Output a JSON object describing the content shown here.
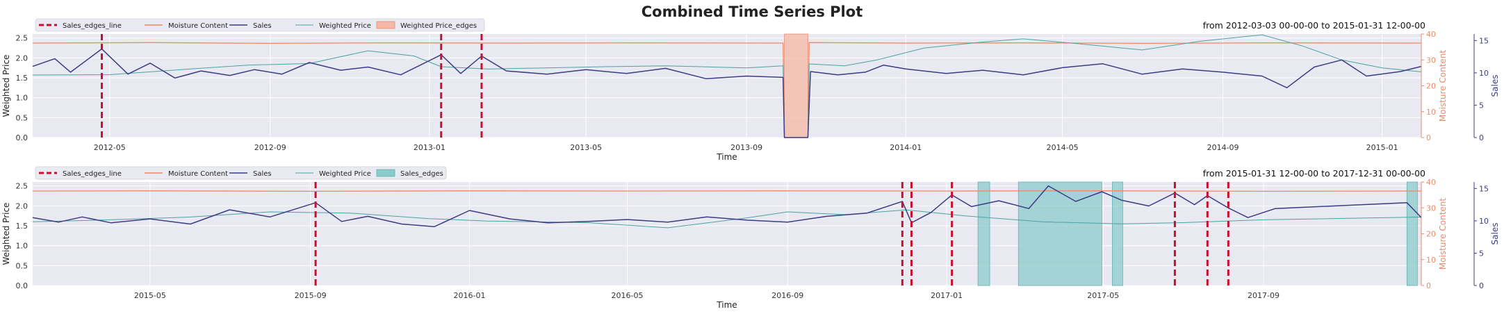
{
  "figure_title": "Combined Time Series Plot",
  "colors": {
    "moisture": "#ee8a66",
    "sales": "#3c3c85",
    "weighted_price": "#4aa3a5",
    "edges_line": "#c8102e",
    "price_edges_fill": "#f4b8a4",
    "sales_edges_fill": "#8ccbcc",
    "panel_bg": "#e9e9f1"
  },
  "chart_data": [
    {
      "type": "line",
      "range_label": "from 2012-03-03 00-00-00 to 2015-01-31 12-00-00",
      "xlabel": "Time",
      "ylabel_left": "Weighted Price",
      "ylabel_right_1": "Moisture Content",
      "ylabel_right_2": "Sales",
      "xlim": [
        "2012-03-03",
        "2015-01-31"
      ],
      "ylim_left": [
        0,
        2.6
      ],
      "ylim_moisture": [
        0,
        40
      ],
      "ylim_sales": [
        0,
        16
      ],
      "yticks_left": [
        "0.0",
        "0.5",
        "1.0",
        "1.5",
        "2.0",
        "2.5"
      ],
      "yticks_moisture": [
        "0",
        "10",
        "20",
        "30",
        "40"
      ],
      "yticks_sales": [
        "0",
        "5",
        "10",
        "15"
      ],
      "xticks": [
        "2012-05",
        "2012-09",
        "2013-01",
        "2013-05",
        "2013-09",
        "2014-01",
        "2014-05",
        "2014-09",
        "2015-01"
      ],
      "legend": [
        {
          "label": "Sales_edges_line",
          "kind": "dashed"
        },
        {
          "label": "Moisture Content",
          "kind": "moisture"
        },
        {
          "label": "Sales",
          "kind": "sales"
        },
        {
          "label": "Weighted Price",
          "kind": "price"
        },
        {
          "label": "Weighted Price_edges",
          "kind": "price_patch"
        }
      ],
      "edge_lines": [
        "2012-04-25",
        "2013-01-10",
        "2013-02-10"
      ],
      "spans": [
        [
          "2013-09-30",
          "2013-10-18"
        ]
      ],
      "span_kind": "price",
      "moisture": [
        [
          "2012-03-03",
          36.5
        ],
        [
          "2012-06-01",
          36.7
        ],
        [
          "2012-09-01",
          36.4
        ],
        [
          "2012-12-01",
          36.6
        ],
        [
          "2013-03-01",
          36.5
        ],
        [
          "2013-06-01",
          36.6
        ],
        [
          "2013-09-29",
          36.5
        ],
        [
          "2013-09-30",
          0
        ],
        [
          "2013-10-18",
          0
        ],
        [
          "2013-10-19",
          36.7
        ],
        [
          "2014-01-01",
          36.5
        ],
        [
          "2014-04-01",
          36.6
        ],
        [
          "2014-07-01",
          36.4
        ],
        [
          "2014-10-01",
          36.6
        ],
        [
          "2015-01-31",
          36.5
        ]
      ],
      "weighted_price": [
        [
          "2012-03-03",
          1.57
        ],
        [
          "2012-05-01",
          1.58
        ],
        [
          "2012-07-01",
          1.72
        ],
        [
          "2012-08-15",
          1.82
        ],
        [
          "2012-10-01",
          1.86
        ],
        [
          "2012-11-15",
          2.18
        ],
        [
          "2012-12-20",
          2.05
        ],
        [
          "2013-01-10",
          1.78
        ],
        [
          "2013-02-15",
          1.72
        ],
        [
          "2013-04-01",
          1.75
        ],
        [
          "2013-05-15",
          1.78
        ],
        [
          "2013-07-01",
          1.8
        ],
        [
          "2013-09-01",
          1.75
        ],
        [
          "2013-09-29",
          1.8
        ],
        [
          "2013-09-30",
          0
        ],
        [
          "2013-10-18",
          0
        ],
        [
          "2013-10-19",
          1.85
        ],
        [
          "2013-11-15",
          1.8
        ],
        [
          "2013-12-10",
          1.95
        ],
        [
          "2014-01-15",
          2.25
        ],
        [
          "2014-03-01",
          2.4
        ],
        [
          "2014-04-01",
          2.48
        ],
        [
          "2014-05-15",
          2.35
        ],
        [
          "2014-07-01",
          2.2
        ],
        [
          "2014-08-15",
          2.42
        ],
        [
          "2014-10-01",
          2.58
        ],
        [
          "2014-11-01",
          2.3
        ],
        [
          "2014-12-01",
          1.95
        ],
        [
          "2015-01-01",
          1.75
        ],
        [
          "2015-01-31",
          1.65
        ]
      ],
      "sales": [
        [
          "2012-03-03",
          11.0
        ],
        [
          "2012-03-20",
          12.2
        ],
        [
          "2012-04-01",
          10.1
        ],
        [
          "2012-04-25",
          13.7
        ],
        [
          "2012-05-15",
          9.8
        ],
        [
          "2012-06-01",
          11.5
        ],
        [
          "2012-06-20",
          9.2
        ],
        [
          "2012-07-10",
          10.3
        ],
        [
          "2012-08-01",
          9.6
        ],
        [
          "2012-08-20",
          10.5
        ],
        [
          "2012-09-10",
          9.8
        ],
        [
          "2012-10-01",
          11.6
        ],
        [
          "2012-10-25",
          10.4
        ],
        [
          "2012-11-15",
          10.9
        ],
        [
          "2012-12-10",
          9.7
        ],
        [
          "2013-01-10",
          12.8
        ],
        [
          "2013-01-25",
          9.9
        ],
        [
          "2013-02-10",
          12.6
        ],
        [
          "2013-03-01",
          10.3
        ],
        [
          "2013-04-01",
          9.8
        ],
        [
          "2013-05-01",
          10.5
        ],
        [
          "2013-06-01",
          9.9
        ],
        [
          "2013-07-01",
          10.7
        ],
        [
          "2013-08-01",
          9.1
        ],
        [
          "2013-09-01",
          9.5
        ],
        [
          "2013-09-29",
          9.3
        ],
        [
          "2013-09-30",
          0
        ],
        [
          "2013-10-18",
          0
        ],
        [
          "2013-10-20",
          10.2
        ],
        [
          "2013-11-10",
          9.7
        ],
        [
          "2013-12-01",
          10.1
        ],
        [
          "2013-12-15",
          11.2
        ],
        [
          "2014-01-01",
          10.6
        ],
        [
          "2014-02-01",
          9.9
        ],
        [
          "2014-03-01",
          10.4
        ],
        [
          "2014-04-01",
          9.7
        ],
        [
          "2014-05-01",
          10.8
        ],
        [
          "2014-06-01",
          11.4
        ],
        [
          "2014-07-01",
          9.8
        ],
        [
          "2014-08-01",
          10.6
        ],
        [
          "2014-09-01",
          10.1
        ],
        [
          "2014-10-01",
          9.5
        ],
        [
          "2014-10-20",
          7.7
        ],
        [
          "2014-11-10",
          10.9
        ],
        [
          "2014-12-01",
          12.0
        ],
        [
          "2014-12-20",
          9.5
        ],
        [
          "2015-01-15",
          10.2
        ],
        [
          "2015-01-31",
          11.0
        ]
      ]
    },
    {
      "type": "line",
      "range_label": "from 2015-01-31 12-00-00 to 2017-12-31 00-00-00",
      "xlabel": "Time",
      "ylabel_left": "Weighted Price",
      "ylabel_right_1": "Moisture Content",
      "ylabel_right_2": "Sales",
      "xlim": [
        "2015-01-31",
        "2017-12-31"
      ],
      "ylim_left": [
        0,
        2.6
      ],
      "ylim_moisture": [
        0,
        40
      ],
      "ylim_sales": [
        0,
        16
      ],
      "yticks_left": [
        "0.0",
        "0.5",
        "1.0",
        "1.5",
        "2.0",
        "2.5"
      ],
      "yticks_moisture": [
        "0",
        "10",
        "20",
        "30",
        "40"
      ],
      "yticks_sales": [
        "0",
        "5",
        "10",
        "15"
      ],
      "xticks": [
        "2015-05",
        "2015-09",
        "2016-01",
        "2016-05",
        "2016-09",
        "2017-01",
        "2017-05",
        "2017-09"
      ],
      "legend": [
        {
          "label": "Sales_edges_line",
          "kind": "dashed"
        },
        {
          "label": "Moisture Content",
          "kind": "moisture"
        },
        {
          "label": "Sales",
          "kind": "sales"
        },
        {
          "label": "Weighted Price",
          "kind": "price"
        },
        {
          "label": "Sales_edges",
          "kind": "sales_patch"
        }
      ],
      "edge_lines": [
        "2015-09-05",
        "2016-11-28",
        "2016-12-05",
        "2017-01-05",
        "2017-06-25",
        "2017-07-20",
        "2017-08-05"
      ],
      "spans": [
        [
          "2017-01-25",
          "2017-02-03"
        ],
        [
          "2017-02-25",
          "2017-04-30"
        ],
        [
          "2017-05-08",
          "2017-05-16"
        ],
        [
          "2017-12-20",
          "2017-12-28"
        ]
      ],
      "span_kind": "sales",
      "moisture": [
        [
          "2015-01-31",
          36.5
        ],
        [
          "2015-05-01",
          36.6
        ],
        [
          "2015-09-01",
          36.4
        ],
        [
          "2016-01-01",
          36.6
        ],
        [
          "2016-05-01",
          36.5
        ],
        [
          "2016-09-01",
          36.6
        ],
        [
          "2017-01-01",
          36.5
        ],
        [
          "2017-05-01",
          36.6
        ],
        [
          "2017-09-01",
          36.4
        ],
        [
          "2017-12-31",
          36.5
        ]
      ],
      "weighted_price": [
        [
          "2015-01-31",
          1.6
        ],
        [
          "2015-04-01",
          1.65
        ],
        [
          "2015-06-01",
          1.72
        ],
        [
          "2015-08-01",
          1.85
        ],
        [
          "2015-10-01",
          1.82
        ],
        [
          "2015-12-01",
          1.68
        ],
        [
          "2016-01-15",
          1.62
        ],
        [
          "2016-04-01",
          1.58
        ],
        [
          "2016-06-01",
          1.45
        ],
        [
          "2016-08-01",
          1.7
        ],
        [
          "2016-09-01",
          1.85
        ],
        [
          "2016-10-15",
          1.78
        ],
        [
          "2016-12-01",
          1.9
        ],
        [
          "2017-01-15",
          1.75
        ],
        [
          "2017-03-15",
          1.6
        ],
        [
          "2017-05-15",
          1.55
        ],
        [
          "2017-07-01",
          1.58
        ],
        [
          "2017-09-01",
          1.65
        ],
        [
          "2017-12-31",
          1.72
        ]
      ],
      "sales": [
        [
          "2015-01-31",
          10.5
        ],
        [
          "2015-02-20",
          9.8
        ],
        [
          "2015-03-10",
          10.6
        ],
        [
          "2015-04-01",
          9.7
        ],
        [
          "2015-05-01",
          10.3
        ],
        [
          "2015-06-01",
          9.5
        ],
        [
          "2015-07-01",
          11.7
        ],
        [
          "2015-08-01",
          10.6
        ],
        [
          "2015-09-05",
          12.8
        ],
        [
          "2015-09-25",
          9.9
        ],
        [
          "2015-10-15",
          10.7
        ],
        [
          "2015-11-10",
          9.5
        ],
        [
          "2015-12-05",
          9.1
        ],
        [
          "2016-01-01",
          11.6
        ],
        [
          "2016-02-01",
          10.3
        ],
        [
          "2016-03-01",
          9.7
        ],
        [
          "2016-04-01",
          9.9
        ],
        [
          "2016-05-01",
          10.2
        ],
        [
          "2016-06-01",
          9.8
        ],
        [
          "2016-07-01",
          10.6
        ],
        [
          "2016-08-01",
          10.1
        ],
        [
          "2016-09-01",
          9.8
        ],
        [
          "2016-10-01",
          10.7
        ],
        [
          "2016-11-01",
          11.2
        ],
        [
          "2016-11-28",
          13.0
        ],
        [
          "2016-12-05",
          9.7
        ],
        [
          "2016-12-20",
          11.3
        ],
        [
          "2017-01-05",
          14.0
        ],
        [
          "2017-01-20",
          12.2
        ],
        [
          "2017-02-10",
          13.1
        ],
        [
          "2017-03-05",
          11.9
        ],
        [
          "2017-03-20",
          15.4
        ],
        [
          "2017-04-10",
          13.0
        ],
        [
          "2017-04-30",
          14.5
        ],
        [
          "2017-05-15",
          13.2
        ],
        [
          "2017-06-05",
          12.3
        ],
        [
          "2017-06-25",
          14.3
        ],
        [
          "2017-07-10",
          12.5
        ],
        [
          "2017-07-20",
          13.9
        ],
        [
          "2017-08-05",
          12.0
        ],
        [
          "2017-08-20",
          10.5
        ],
        [
          "2017-09-10",
          11.9
        ],
        [
          "2017-12-20",
          12.8
        ],
        [
          "2017-12-31",
          10.5
        ]
      ]
    }
  ]
}
